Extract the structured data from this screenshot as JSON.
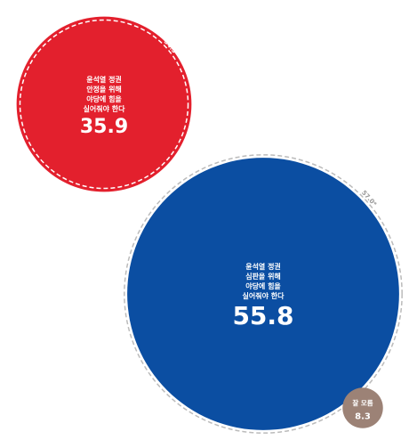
{
  "chart_data": {
    "type": "bubble",
    "categories": [
      [
        "윤석열 정권",
        "안정을 위해",
        "야당에 힘을",
        "실어줘야 한다"
      ],
      [
        "윤석열 정권",
        "심판을 위해",
        "야당에 힘을",
        "실어줘야 한다"
      ],
      [
        "잘 모름"
      ]
    ],
    "values": [
      35.9,
      55.8,
      8.3
    ],
    "colors": [
      "#e3202d",
      "#0b4ea2",
      "#9c8276"
    ],
    "previous": {
      "values": [
        34.5,
        57.0,
        null
      ],
      "value_labels": [
        "34.5*",
        "57.0*",
        null
      ]
    }
  }
}
